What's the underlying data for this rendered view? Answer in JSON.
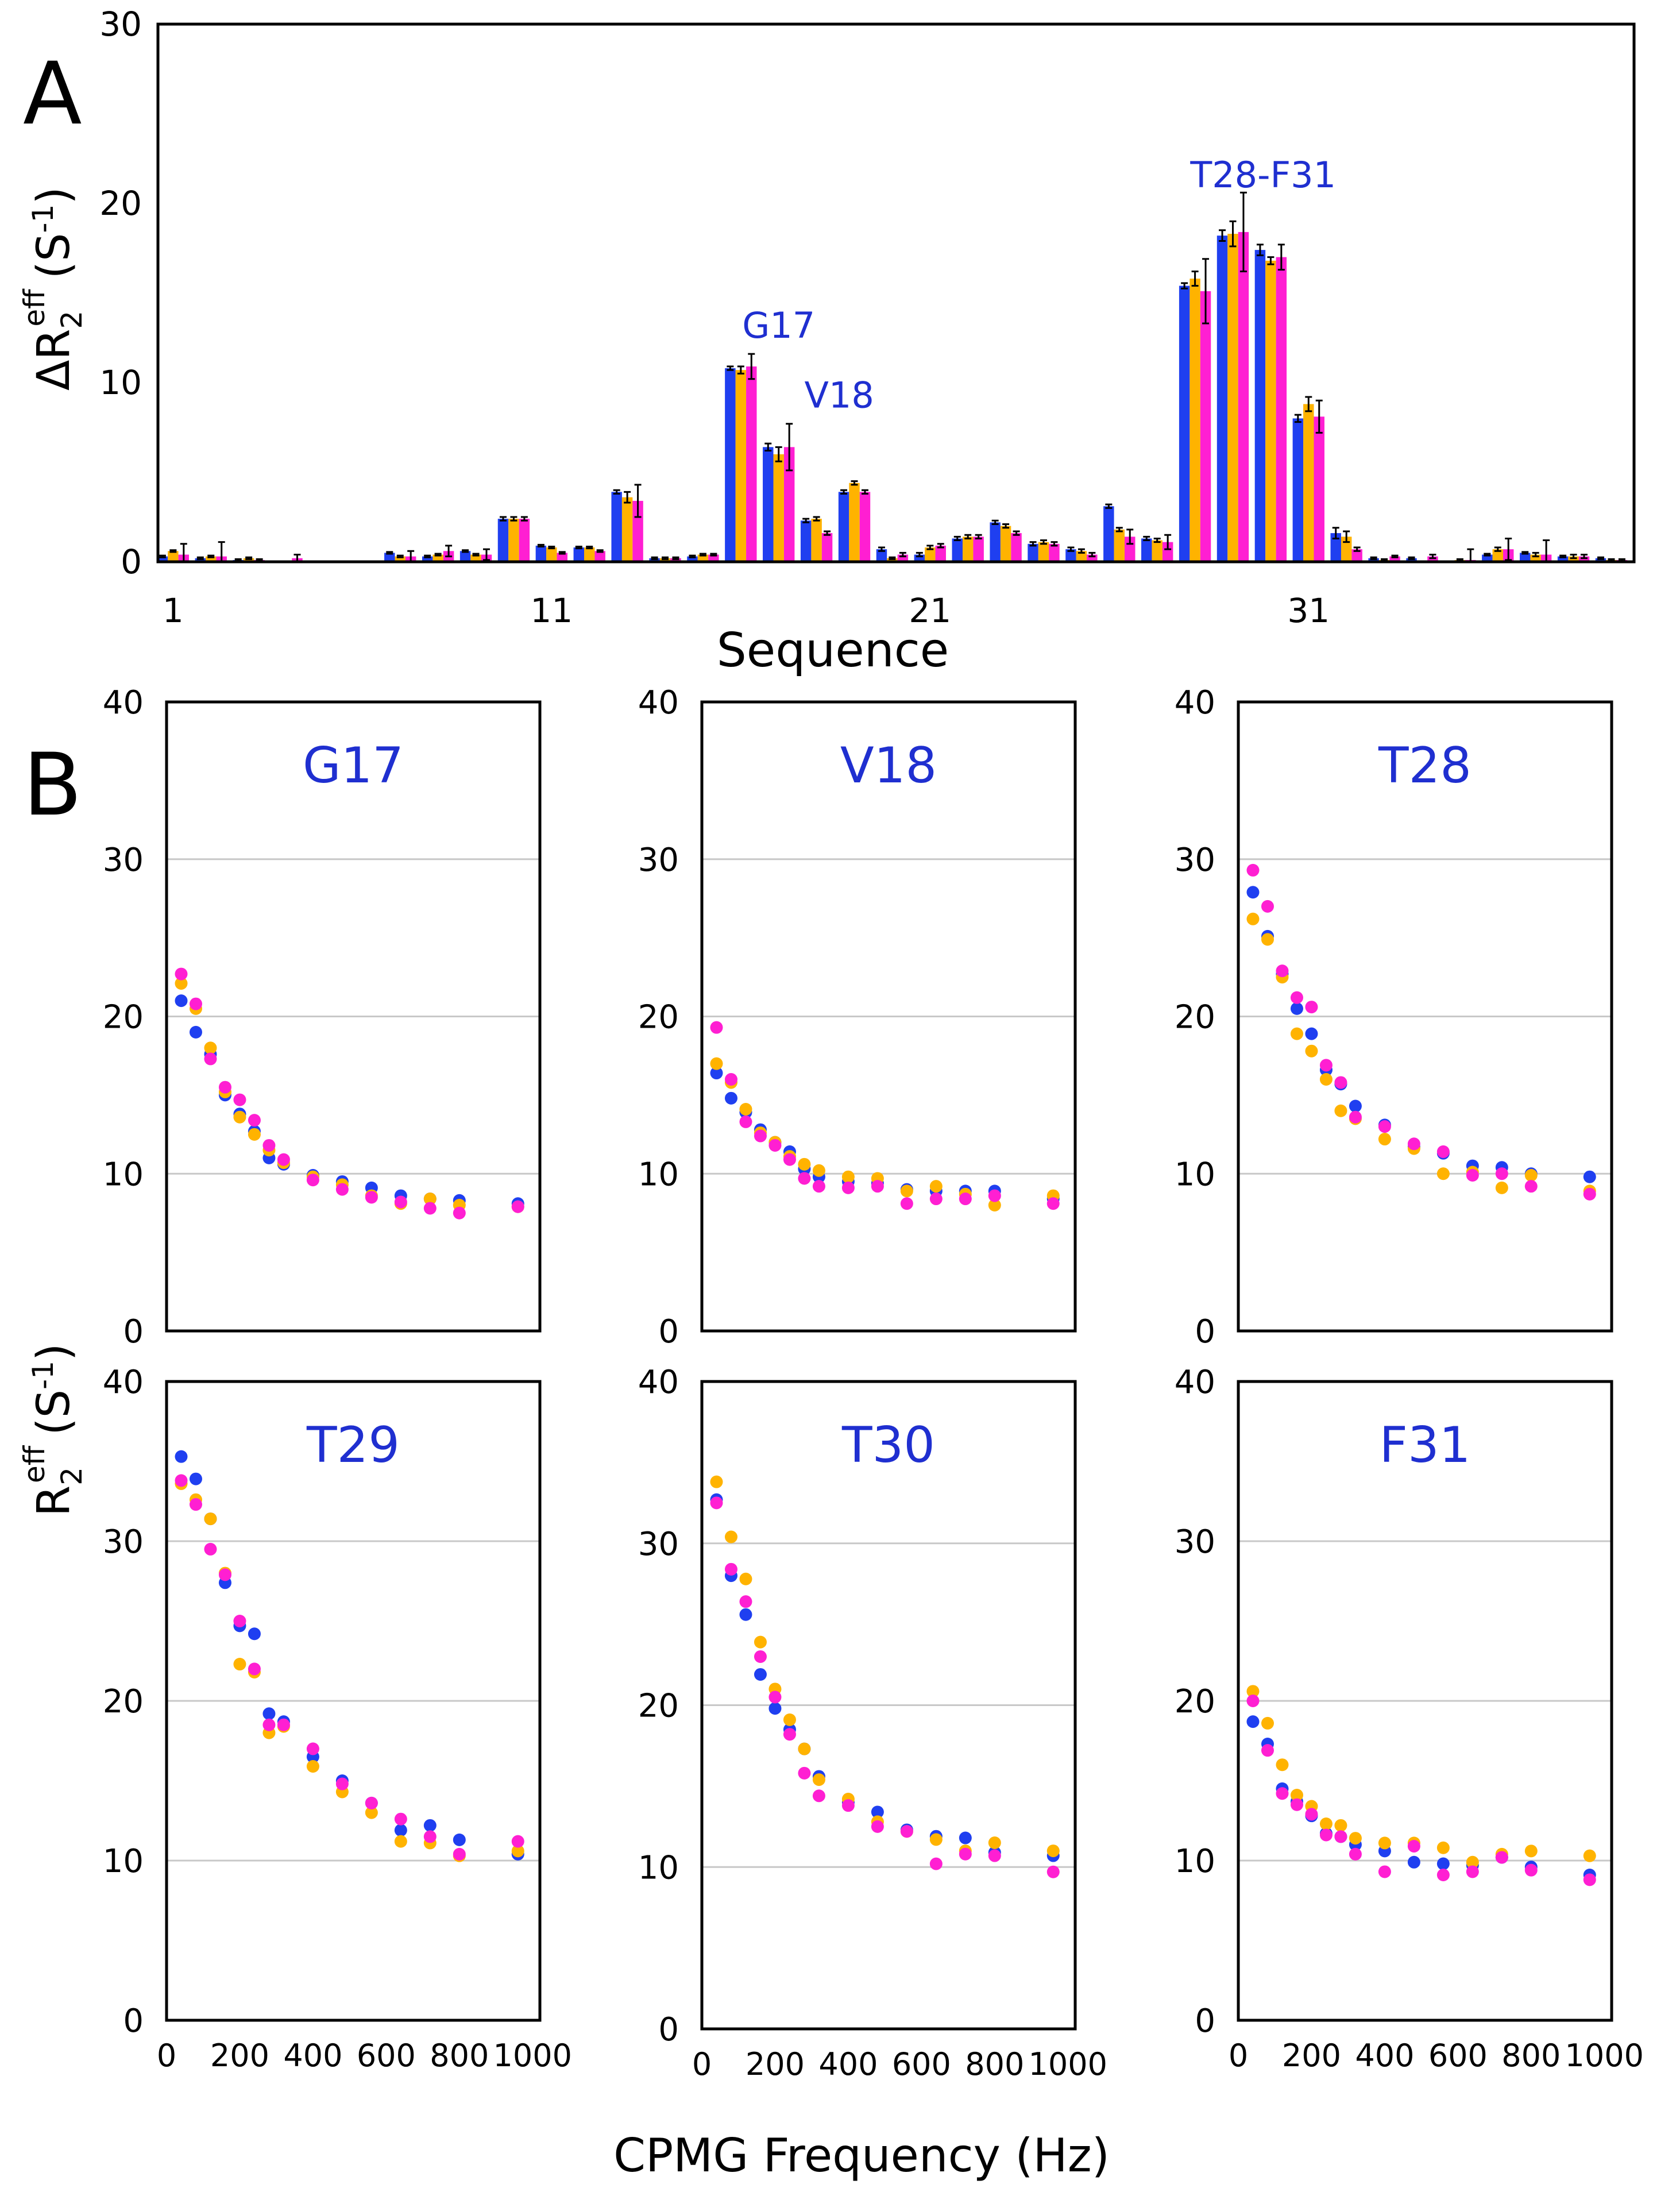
{
  "colors": {
    "blue": "#1f3ff0",
    "orange": "#ffb300",
    "magenta": "#ff1fd2",
    "residue_label": "#1f2fd0",
    "axis": "#000000",
    "grid": "#c8c8c8"
  },
  "panel_a": {
    "letter": "A",
    "ylabel_main": "ΔR",
    "ylabel_sub": "2",
    "ylabel_sup": "eff",
    "ylabel_unit": "(S",
    "ylabel_unit_sup": "-1",
    "ylabel_close": ")"
  },
  "panel_b": {
    "letter": "B",
    "ylabel_main": "R",
    "ylabel_sub": "2",
    "ylabel_sup": "eff",
    "ylabel_unit": "(S",
    "ylabel_unit_sup": "-1",
    "ylabel_close": ")"
  },
  "chart_data": [
    {
      "type": "bar",
      "id": "A",
      "xlabel": "Sequence",
      "ylim": [
        0,
        30
      ],
      "yticks": [
        0,
        10,
        20,
        30
      ],
      "xticks": [
        1,
        11,
        21,
        31
      ],
      "xticklabels": [
        "1",
        "11",
        "21",
        "31"
      ],
      "xlim": [
        0.6,
        39.6
      ],
      "annotations": [
        {
          "text": "G17",
          "x": 17.0,
          "y": 12.5
        },
        {
          "text": "V18",
          "x": 18.6,
          "y": 8.6
        },
        {
          "text": "T28-F31",
          "x": 29.8,
          "y": 20.9
        }
      ],
      "categories": [
        1,
        2,
        3,
        4,
        5,
        6,
        7,
        8,
        9,
        10,
        11,
        12,
        13,
        14,
        15,
        16,
        17,
        18,
        19,
        20,
        21,
        22,
        23,
        24,
        25,
        26,
        27,
        28,
        29,
        30,
        31,
        32,
        33,
        34,
        35,
        36,
        37,
        38,
        39
      ],
      "series": [
        {
          "name": "blue",
          "values": [
            0.3,
            0.2,
            0.1,
            0.0,
            0.0,
            0.0,
            0.5,
            0.3,
            0.6,
            2.4,
            0.9,
            0.8,
            3.9,
            0.2,
            0.3,
            10.8,
            6.4,
            2.3,
            3.9,
            0.7,
            0.4,
            1.3,
            2.2,
            1.0,
            0.7,
            3.1,
            1.3,
            15.4,
            18.2,
            17.4,
            8.0,
            1.6,
            0.2,
            0.2,
            0.0,
            0.4,
            0.5,
            0.3,
            0.2
          ],
          "err": [
            0.05,
            0.05,
            0.05,
            0,
            0,
            0,
            0.05,
            0.05,
            0.05,
            0.1,
            0.05,
            0.05,
            0.1,
            0.05,
            0.05,
            0.1,
            0.2,
            0.1,
            0.1,
            0.1,
            0.1,
            0.1,
            0.1,
            0.1,
            0.1,
            0.1,
            0.1,
            0.15,
            0.3,
            0.3,
            0.2,
            0.3,
            0.05,
            0.05,
            0,
            0.05,
            0.05,
            0.05,
            0.05
          ]
        },
        {
          "name": "orange",
          "values": [
            0.6,
            0.3,
            0.2,
            0.0,
            0.0,
            0.0,
            0.3,
            0.4,
            0.4,
            2.4,
            0.8,
            0.8,
            3.6,
            0.2,
            0.4,
            10.7,
            6.0,
            2.4,
            4.4,
            0.2,
            0.8,
            1.4,
            2.0,
            1.1,
            0.6,
            1.8,
            1.2,
            15.8,
            18.3,
            16.8,
            8.8,
            1.4,
            0.1,
            0.0,
            0.1,
            0.7,
            0.4,
            0.3,
            0.1
          ],
          "err": [
            0.05,
            0.05,
            0.05,
            0,
            0,
            0,
            0.05,
            0.05,
            0.05,
            0.1,
            0.05,
            0.05,
            0.3,
            0.05,
            0.05,
            0.2,
            0.4,
            0.1,
            0.1,
            0.05,
            0.1,
            0.1,
            0.1,
            0.1,
            0.1,
            0.1,
            0.1,
            0.4,
            0.7,
            0.2,
            0.4,
            0.3,
            0.05,
            0,
            0.05,
            0.1,
            0.1,
            0.1,
            0.05
          ]
        },
        {
          "name": "magenta",
          "values": [
            0.4,
            0.3,
            0.1,
            0.2,
            0.0,
            0.0,
            0.3,
            0.6,
            0.4,
            2.4,
            0.5,
            0.6,
            3.4,
            0.2,
            0.4,
            10.9,
            6.4,
            1.6,
            3.9,
            0.4,
            0.9,
            1.4,
            1.6,
            1.0,
            0.4,
            1.4,
            1.1,
            15.1,
            18.4,
            17.0,
            8.1,
            0.7,
            0.3,
            0.3,
            0.1,
            0.7,
            0.4,
            0.3,
            0.1
          ],
          "err": [
            0.6,
            0.8,
            0.05,
            0.2,
            0,
            0,
            0.3,
            0.3,
            0.3,
            0.1,
            0.05,
            0.05,
            0.9,
            0.05,
            0.05,
            0.7,
            1.3,
            0.1,
            0.1,
            0.1,
            0.1,
            0.1,
            0.1,
            0.1,
            0.1,
            0.4,
            0.4,
            1.8,
            2.2,
            0.7,
            0.9,
            0.1,
            0.05,
            0.1,
            0.6,
            0.6,
            0.8,
            0.1,
            0.05
          ]
        }
      ]
    },
    {
      "type": "scatter",
      "id": "G17",
      "title": "G17",
      "ylim": [
        0,
        40
      ],
      "yticks": [
        0,
        10,
        20,
        30,
        40
      ],
      "xlim": [
        0,
        1020
      ],
      "xticks": [
        0,
        200,
        400,
        600,
        800,
        1000
      ],
      "x": [
        40,
        80,
        120,
        160,
        200,
        240,
        280,
        320,
        400,
        480,
        560,
        640,
        720,
        800,
        960
      ],
      "series": [
        {
          "name": "blue",
          "values": [
            21.0,
            19.0,
            17.6,
            15.0,
            13.8,
            12.7,
            11.0,
            10.6,
            9.9,
            9.5,
            9.1,
            8.6,
            8.4,
            8.3,
            8.1
          ]
        },
        {
          "name": "orange",
          "values": [
            22.1,
            20.5,
            18.0,
            15.2,
            13.6,
            12.5,
            11.5,
            10.7,
            9.8,
            9.3,
            8.6,
            8.1,
            8.4,
            8.0,
            7.9
          ]
        },
        {
          "name": "magenta",
          "values": [
            22.7,
            20.8,
            17.3,
            15.5,
            14.7,
            13.4,
            11.8,
            10.9,
            9.6,
            9.0,
            8.5,
            8.2,
            7.8,
            7.5,
            7.9
          ]
        }
      ]
    },
    {
      "type": "scatter",
      "id": "V18",
      "title": "V18",
      "ylim": [
        0,
        40
      ],
      "yticks": [
        0,
        10,
        20,
        30,
        40
      ],
      "xlim": [
        0,
        1020
      ],
      "xticks": [
        0,
        200,
        400,
        600,
        800,
        1000
      ],
      "x": [
        40,
        80,
        120,
        160,
        200,
        240,
        280,
        320,
        400,
        480,
        560,
        640,
        720,
        800,
        960
      ],
      "series": [
        {
          "name": "blue",
          "values": [
            16.4,
            14.8,
            13.9,
            12.8,
            12.0,
            11.4,
            10.3,
            9.8,
            9.5,
            9.4,
            9.0,
            8.9,
            8.9,
            8.9,
            8.4
          ]
        },
        {
          "name": "orange",
          "values": [
            17.0,
            15.8,
            14.1,
            12.6,
            12.0,
            11.1,
            10.6,
            10.2,
            9.8,
            9.7,
            8.9,
            9.2,
            8.7,
            8.0,
            8.6
          ]
        },
        {
          "name": "magenta",
          "values": [
            19.3,
            16.0,
            13.3,
            12.4,
            11.8,
            10.9,
            9.7,
            9.2,
            9.1,
            9.2,
            8.1,
            8.4,
            8.4,
            8.6,
            8.1
          ]
        }
      ]
    },
    {
      "type": "scatter",
      "id": "T28",
      "title": "T28",
      "ylim": [
        0,
        40
      ],
      "yticks": [
        0,
        10,
        20,
        30,
        40
      ],
      "xlim": [
        0,
        1020
      ],
      "xticks": [
        0,
        200,
        400,
        600,
        800,
        1000
      ],
      "x": [
        40,
        80,
        120,
        160,
        200,
        240,
        280,
        320,
        400,
        480,
        560,
        640,
        720,
        800,
        960
      ],
      "series": [
        {
          "name": "blue",
          "values": [
            27.9,
            25.1,
            22.7,
            20.5,
            18.9,
            16.6,
            15.7,
            14.3,
            13.1,
            11.7,
            11.3,
            10.5,
            10.4,
            10.0,
            9.8
          ]
        },
        {
          "name": "orange",
          "values": [
            26.2,
            24.9,
            22.5,
            18.9,
            17.8,
            16.0,
            14.0,
            13.5,
            12.2,
            11.6,
            10.0,
            10.1,
            9.1,
            9.9,
            8.9
          ]
        },
        {
          "name": "magenta",
          "values": [
            29.3,
            27.0,
            22.9,
            21.2,
            20.6,
            16.9,
            15.8,
            13.6,
            13.0,
            11.9,
            11.4,
            9.9,
            10.0,
            9.2,
            8.7
          ]
        }
      ]
    },
    {
      "type": "scatter",
      "id": "T29",
      "title": "T29",
      "ylim": [
        0,
        40
      ],
      "yticks": [
        0,
        10,
        20,
        30,
        40
      ],
      "xlim": [
        0,
        1020
      ],
      "xticks": [
        0,
        200,
        400,
        600,
        800,
        1000
      ],
      "x": [
        40,
        80,
        120,
        160,
        200,
        240,
        280,
        320,
        400,
        480,
        560,
        640,
        720,
        800,
        960
      ],
      "series": [
        {
          "name": "blue",
          "values": [
            35.3,
            33.9,
            31.4,
            27.4,
            24.7,
            24.2,
            19.2,
            18.7,
            16.5,
            15.0,
            13.6,
            11.9,
            12.2,
            11.3,
            10.4
          ]
        },
        {
          "name": "orange",
          "values": [
            33.6,
            32.6,
            31.4,
            28.0,
            22.3,
            21.8,
            18.0,
            18.4,
            15.9,
            14.3,
            13.0,
            11.2,
            11.1,
            10.3,
            10.6
          ]
        },
        {
          "name": "magenta",
          "values": [
            33.8,
            32.3,
            29.5,
            27.9,
            25.0,
            22.0,
            18.5,
            18.5,
            17.0,
            14.8,
            13.6,
            12.6,
            11.5,
            10.4,
            11.2
          ]
        }
      ]
    },
    {
      "type": "scatter",
      "id": "T30",
      "title": "T30",
      "ylim": [
        0,
        40
      ],
      "yticks": [
        0,
        10,
        20,
        30,
        40
      ],
      "xlim": [
        0,
        1020
      ],
      "xticks": [
        0,
        200,
        400,
        600,
        800,
        1000
      ],
      "x": [
        40,
        80,
        120,
        160,
        200,
        240,
        280,
        320,
        400,
        480,
        560,
        640,
        720,
        800,
        960
      ],
      "series": [
        {
          "name": "blue",
          "values": [
            32.7,
            28.0,
            25.6,
            21.9,
            19.8,
            18.5,
            17.3,
            15.6,
            14.0,
            13.4,
            12.3,
            11.9,
            11.8,
            10.9,
            10.7
          ]
        },
        {
          "name": "orange",
          "values": [
            33.8,
            30.4,
            27.8,
            23.9,
            21.0,
            19.1,
            17.3,
            15.4,
            14.2,
            12.8,
            12.2,
            11.7,
            11.0,
            11.5,
            11.0
          ]
        },
        {
          "name": "magenta",
          "values": [
            32.5,
            28.4,
            26.4,
            23.0,
            20.5,
            18.2,
            15.8,
            14.4,
            13.8,
            12.5,
            12.2,
            10.2,
            10.8,
            10.7,
            9.7
          ]
        }
      ]
    },
    {
      "type": "scatter",
      "id": "F31",
      "title": "F31",
      "ylim": [
        0,
        40
      ],
      "yticks": [
        0,
        10,
        20,
        30,
        40
      ],
      "xlim": [
        0,
        1020
      ],
      "xticks": [
        0,
        200,
        400,
        600,
        800,
        1000
      ],
      "x": [
        40,
        80,
        120,
        160,
        200,
        240,
        280,
        320,
        400,
        480,
        560,
        640,
        720,
        800,
        960
      ],
      "series": [
        {
          "name": "blue",
          "values": [
            18.7,
            17.3,
            14.5,
            13.7,
            12.8,
            11.7,
            11.5,
            11.0,
            10.6,
            9.9,
            9.8,
            9.7,
            10.2,
            9.6,
            9.1
          ]
        },
        {
          "name": "orange",
          "values": [
            20.6,
            18.6,
            16.0,
            14.1,
            13.4,
            12.3,
            12.2,
            11.4,
            11.1,
            11.1,
            10.8,
            9.9,
            10.4,
            10.6,
            10.3
          ]
        },
        {
          "name": "magenta",
          "values": [
            20.0,
            16.9,
            14.2,
            13.5,
            12.9,
            11.6,
            11.5,
            10.4,
            9.3,
            10.9,
            9.1,
            9.3,
            10.2,
            9.4,
            8.8
          ]
        }
      ]
    }
  ],
  "bottom_axis": {
    "xlabel": "CPMG Frequency (Hz)"
  }
}
